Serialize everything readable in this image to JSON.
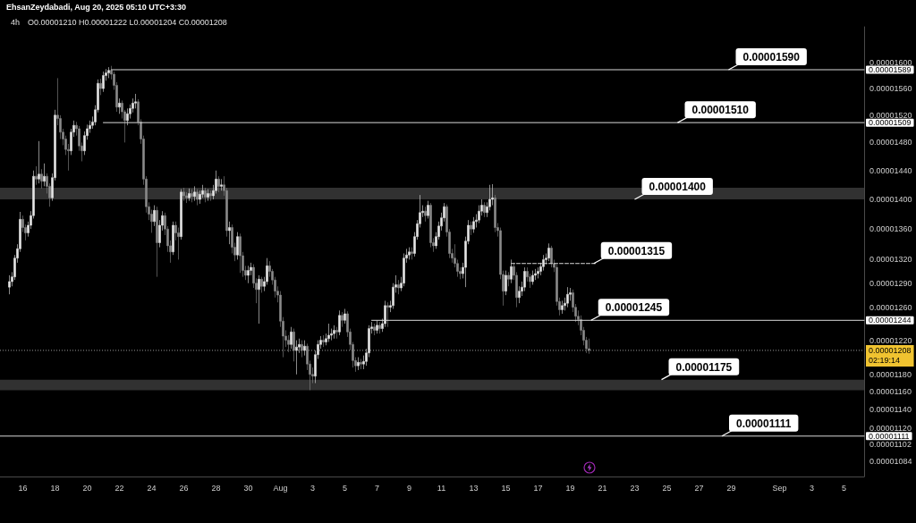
{
  "chart_data": {
    "type": "candlestick",
    "title": "4h",
    "subtitle": "O0.00001210 H0.00001222 L0.00001204 C0.00001208",
    "log": true,
    "x": [
      "2025-07-15T04:00",
      "2025-07-15T08:00",
      "2025-07-15T12:00",
      "2025-07-15T16:00",
      "2025-07-15T20:00",
      "2025-07-16T00:00",
      "2025-07-16T04:00",
      "2025-07-16T08:00",
      "2025-07-16T12:00",
      "2025-07-16T16:00",
      "2025-07-16T20:00",
      "2025-07-17T00:00",
      "2025-07-17T04:00",
      "2025-07-17T08:00",
      "2025-07-17T12:00",
      "2025-07-17T16:00",
      "2025-07-17T20:00",
      "2025-07-18T00:00",
      "2025-07-18T04:00",
      "2025-07-18T08:00",
      "2025-07-18T12:00",
      "2025-07-18T16:00",
      "2025-07-18T20:00",
      "2025-07-19T00:00",
      "2025-07-19T04:00",
      "2025-07-19T08:00",
      "2025-07-19T12:00",
      "2025-07-19T16:00",
      "2025-07-19T20:00",
      "2025-07-20T00:00",
      "2025-07-20T04:00",
      "2025-07-20T08:00",
      "2025-07-20T12:00",
      "2025-07-20T16:00",
      "2025-07-20T20:00",
      "2025-07-21T00:00",
      "2025-07-21T04:00",
      "2025-07-21T08:00",
      "2025-07-21T12:00",
      "2025-07-21T16:00",
      "2025-07-21T20:00",
      "2025-07-22T00:00",
      "2025-07-22T04:00",
      "2025-07-22T08:00",
      "2025-07-22T12:00",
      "2025-07-22T16:00",
      "2025-07-22T20:00",
      "2025-07-23T00:00",
      "2025-07-23T04:00",
      "2025-07-23T08:00",
      "2025-07-23T12:00",
      "2025-07-23T16:00",
      "2025-07-23T20:00",
      "2025-07-24T00:00",
      "2025-07-24T04:00",
      "2025-07-24T08:00",
      "2025-07-24T12:00",
      "2025-07-24T16:00",
      "2025-07-24T20:00",
      "2025-07-25T00:00",
      "2025-07-25T04:00",
      "2025-07-25T08:00",
      "2025-07-25T12:00",
      "2025-07-25T16:00",
      "2025-07-25T20:00",
      "2025-07-26T00:00",
      "2025-07-26T04:00",
      "2025-07-26T08:00",
      "2025-07-26T12:00",
      "2025-07-26T16:00",
      "2025-07-26T20:00",
      "2025-07-27T00:00",
      "2025-07-27T04:00",
      "2025-07-27T08:00",
      "2025-07-27T12:00",
      "2025-07-27T16:00",
      "2025-07-27T20:00",
      "2025-07-28T00:00",
      "2025-07-28T04:00",
      "2025-07-28T08:00",
      "2025-07-28T12:00",
      "2025-07-28T16:00",
      "2025-07-28T20:00",
      "2025-07-29T00:00",
      "2025-07-29T04:00",
      "2025-07-29T08:00",
      "2025-07-29T12:00",
      "2025-07-29T16:00",
      "2025-07-29T20:00",
      "2025-07-30T00:00",
      "2025-07-30T04:00",
      "2025-07-30T08:00",
      "2025-07-30T12:00",
      "2025-07-30T16:00",
      "2025-07-30T20:00",
      "2025-07-31T00:00",
      "2025-07-31T04:00",
      "2025-07-31T08:00",
      "2025-07-31T12:00",
      "2025-07-31T16:00",
      "2025-07-31T20:00",
      "2025-08-01T00:00",
      "2025-08-01T04:00",
      "2025-08-01T08:00",
      "2025-08-01T12:00",
      "2025-08-01T16:00",
      "2025-08-01T20:00",
      "2025-08-02T00:00",
      "2025-08-02T04:00",
      "2025-08-02T08:00",
      "2025-08-02T12:00",
      "2025-08-02T16:00",
      "2025-08-02T20:00",
      "2025-08-03T00:00",
      "2025-08-03T04:00",
      "2025-08-03T08:00",
      "2025-08-03T12:00",
      "2025-08-03T16:00",
      "2025-08-03T20:00",
      "2025-08-04T00:00",
      "2025-08-04T04:00",
      "2025-08-04T08:00",
      "2025-08-04T12:00",
      "2025-08-04T16:00",
      "2025-08-04T20:00",
      "2025-08-05T00:00",
      "2025-08-05T04:00",
      "2025-08-05T08:00",
      "2025-08-05T12:00",
      "2025-08-05T16:00",
      "2025-08-05T20:00",
      "2025-08-06T00:00",
      "2025-08-06T04:00",
      "2025-08-06T08:00",
      "2025-08-06T12:00",
      "2025-08-06T16:00",
      "2025-08-06T20:00",
      "2025-08-07T00:00",
      "2025-08-07T04:00",
      "2025-08-07T08:00",
      "2025-08-07T12:00",
      "2025-08-07T16:00",
      "2025-08-07T20:00",
      "2025-08-08T00:00",
      "2025-08-08T04:00",
      "2025-08-08T08:00",
      "2025-08-08T12:00",
      "2025-08-08T16:00",
      "2025-08-08T20:00",
      "2025-08-09T00:00",
      "2025-08-09T04:00",
      "2025-08-09T08:00",
      "2025-08-09T12:00",
      "2025-08-09T16:00",
      "2025-08-09T20:00",
      "2025-08-10T00:00",
      "2025-08-10T04:00",
      "2025-08-10T08:00",
      "2025-08-10T12:00",
      "2025-08-10T16:00",
      "2025-08-10T20:00",
      "2025-08-11T00:00",
      "2025-08-11T04:00",
      "2025-08-11T08:00",
      "2025-08-11T12:00",
      "2025-08-11T16:00",
      "2025-08-11T20:00",
      "2025-08-12T00:00",
      "2025-08-12T04:00",
      "2025-08-12T08:00",
      "2025-08-12T12:00",
      "2025-08-12T16:00",
      "2025-08-12T20:00",
      "2025-08-13T00:00",
      "2025-08-13T04:00",
      "2025-08-13T08:00",
      "2025-08-13T12:00",
      "2025-08-13T16:00",
      "2025-08-13T20:00",
      "2025-08-14T00:00",
      "2025-08-14T04:00",
      "2025-08-14T08:00",
      "2025-08-14T12:00",
      "2025-08-14T16:00",
      "2025-08-14T20:00",
      "2025-08-15T00:00",
      "2025-08-15T04:00",
      "2025-08-15T08:00",
      "2025-08-15T12:00",
      "2025-08-15T16:00",
      "2025-08-15T20:00",
      "2025-08-16T00:00",
      "2025-08-16T04:00",
      "2025-08-16T08:00",
      "2025-08-16T12:00",
      "2025-08-16T16:00",
      "2025-08-16T20:00",
      "2025-08-17T00:00",
      "2025-08-17T04:00",
      "2025-08-17T08:00",
      "2025-08-17T12:00",
      "2025-08-17T16:00",
      "2025-08-17T20:00",
      "2025-08-18T00:00",
      "2025-08-18T04:00",
      "2025-08-18T08:00",
      "2025-08-18T12:00",
      "2025-08-18T16:00",
      "2025-08-18T20:00",
      "2025-08-19T00:00",
      "2025-08-19T04:00",
      "2025-08-19T08:00",
      "2025-08-19T12:00",
      "2025-08-19T16:00",
      "2025-08-19T20:00",
      "2025-08-20T00:00",
      "2025-08-20T04:00"
    ],
    "colors": [
      "#e6e6e6",
      "#e6e6e6",
      "#e6e6e6",
      "#e6e6e6",
      "#e6e6e6",
      "#8a8a8a",
      "#8a8a8a",
      "#e6e6e6",
      "#e6e6e6",
      "#e6e6e6",
      "#8a8a8a",
      "#e6e6e6",
      "#8a8a8a",
      "#e6e6e6",
      "#8a8a8a",
      "#8a8a8a",
      "#e6e6e6",
      "#e6e6e6",
      "#8a8a8a",
      "#8a8a8a",
      "#8a8a8a",
      "#8a8a8a",
      "#8a8a8a",
      "#e6e6e6",
      "#e6e6e6",
      "#8a8a8a",
      "#8a8a8a",
      "#8a8a8a",
      "#e6e6e6",
      "#e6e6e6",
      "#e6e6e6",
      "#e6e6e6",
      "#e6e6e6",
      "#e6e6e6",
      "#8a8a8a",
      "#e6e6e6",
      "#e6e6e6",
      "#e6e6e6",
      "#8a8a8a",
      "#8a8a8a",
      "#8a8a8a",
      "#e6e6e6",
      "#8a8a8a",
      "#8a8a8a",
      "#e6e6e6",
      "#e6e6e6",
      "#e6e6e6",
      "#e6e6e6",
      "#8a8a8a",
      "#8a8a8a",
      "#8a8a8a",
      "#8a8a8a",
      "#8a8a8a",
      "#8a8a8a",
      "#e6e6e6",
      "#8a8a8a",
      "#e6e6e6",
      "#e6e6e6",
      "#8a8a8a",
      "#8a8a8a",
      "#8a8a8a",
      "#e6e6e6",
      "#8a8a8a",
      "#8a8a8a",
      "#e6e6e6",
      "#8a8a8a",
      "#8a8a8a",
      "#e6e6e6",
      "#8a8a8a",
      "#e6e6e6",
      "#8a8a8a",
      "#e6e6e6",
      "#e6e6e6",
      "#8a8a8a",
      "#e6e6e6",
      "#8a8a8a",
      "#e6e6e6",
      "#e6e6e6",
      "#8a8a8a",
      "#e6e6e6",
      "#8a8a8a",
      "#8a8a8a",
      "#e6e6e6",
      "#8a8a8a",
      "#8a8a8a",
      "#e6e6e6",
      "#8a8a8a",
      "#8a8a8a",
      "#8a8a8a",
      "#e6e6e6",
      "#e6e6e6",
      "#8a8a8a",
      "#8a8a8a",
      "#e6e6e6",
      "#8a8a8a",
      "#e6e6e6",
      "#e6e6e6",
      "#8a8a8a",
      "#8a8a8a",
      "#8a8a8a",
      "#8a8a8a",
      "#8a8a8a",
      "#8a8a8a",
      "#8a8a8a",
      "#8a8a8a",
      "#e6e6e6",
      "#8a8a8a",
      "#e6e6e6",
      "#e6e6e6",
      "#8a8a8a",
      "#e6e6e6",
      "#8a8a8a",
      "#8a8a8a",
      "#8a8a8a",
      "#e6e6e6",
      "#e6e6e6",
      "#e6e6e6",
      "#8a8a8a",
      "#e6e6e6",
      "#e6e6e6",
      "#e6e6e6",
      "#e6e6e6",
      "#8a8a8a",
      "#e6e6e6",
      "#8a8a8a",
      "#e6e6e6",
      "#8a8a8a",
      "#8a8a8a",
      "#8a8a8a",
      "#8a8a8a",
      "#e6e6e6",
      "#8a8a8a",
      "#e6e6e6",
      "#e6e6e6",
      "#e6e6e6",
      "#e6e6e6",
      "#8a8a8a",
      "#e6e6e6",
      "#8a8a8a",
      "#e6e6e6",
      "#e6e6e6",
      "#8a8a8a",
      "#e6e6e6",
      "#e6e6e6",
      "#e6e6e6",
      "#8a8a8a",
      "#e6e6e6",
      "#e6e6e6",
      "#e6e6e6",
      "#e6e6e6",
      "#8a8a8a",
      "#e6e6e6",
      "#e6e6e6",
      "#e6e6e6",
      "#e6e6e6",
      "#8a8a8a",
      "#e6e6e6",
      "#8a8a8a",
      "#8a8a8a",
      "#e6e6e6",
      "#e6e6e6",
      "#e6e6e6",
      "#e6e6e6",
      "#8a8a8a",
      "#8a8a8a",
      "#8a8a8a",
      "#8a8a8a",
      "#8a8a8a",
      "#8a8a8a",
      "#e6e6e6",
      "#e6e6e6",
      "#e6e6e6",
      "#8a8a8a",
      "#e6e6e6",
      "#e6e6e6",
      "#e6e6e6",
      "#e6e6e6",
      "#8a8a8a",
      "#e6e6e6",
      "#e6e6e6",
      "#e6e6e6",
      "#8a8a8a",
      "#8a8a8a",
      "#8a8a8a",
      "#8a8a8a",
      "#e6e6e6",
      "#8a8a8a",
      "#e6e6e6",
      "#8a8a8a",
      "#8a8a8a",
      "#e6e6e6",
      "#e6e6e6",
      "#e6e6e6",
      "#8a8a8a",
      "#8a8a8a",
      "#e6e6e6",
      "#e6e6e6",
      "#e6e6e6",
      "#e6e6e6",
      "#e6e6e6",
      "#e6e6e6",
      "#e6e6e6",
      "#8a8a8a",
      "#8a8a8a",
      "#8a8a8a",
      "#8a8a8a",
      "#e6e6e6",
      "#e6e6e6",
      "#e6e6e6",
      "#e6e6e6",
      "#8a8a8a",
      "#8a8a8a",
      "#8a8a8a",
      "#8a8a8a",
      "#8a8a8a",
      "#8a8a8a",
      "#8a8a8a"
    ],
    "ohlc": [
      [
        1.285e-05,
        1.3e-05,
        1.276e-05,
        1.292e-05
      ],
      [
        1.292e-05,
        1.304e-05,
        1.286e-05,
        1.298e-05
      ],
      [
        1.298e-05,
        1.326e-05,
        1.294e-05,
        1.322e-05
      ],
      [
        1.322e-05,
        1.34e-05,
        1.316e-05,
        1.334e-05
      ],
      [
        1.334e-05,
        1.383e-05,
        1.33e-05,
        1.373e-05
      ],
      [
        1.373e-05,
        1.378e-05,
        1.356e-05,
        1.362e-05
      ],
      [
        1.362e-05,
        1.366e-05,
        1.345e-05,
        1.355e-05
      ],
      [
        1.355e-05,
        1.37e-05,
        1.35e-05,
        1.365e-05
      ],
      [
        1.365e-05,
        1.384e-05,
        1.36e-05,
        1.378e-05
      ],
      [
        1.378e-05,
        1.44e-05,
        1.374e-05,
        1.432e-05
      ],
      [
        1.432e-05,
        1.446e-05,
        1.42e-05,
        1.428e-05
      ],
      [
        1.428e-05,
        1.482e-05,
        1.422e-05,
        1.435e-05
      ],
      [
        1.435e-05,
        1.442e-05,
        1.415e-05,
        1.425e-05
      ],
      [
        1.425e-05,
        1.45e-05,
        1.418e-05,
        1.432e-05
      ],
      [
        1.432e-05,
        1.436e-05,
        1.408e-05,
        1.418e-05
      ],
      [
        1.418e-05,
        1.422e-05,
        1.39e-05,
        1.402e-05
      ],
      [
        1.402e-05,
        1.436e-05,
        1.398e-05,
        1.43e-05
      ],
      [
        1.43e-05,
        1.528e-05,
        1.426e-05,
        1.52e-05
      ],
      [
        1.52e-05,
        1.576e-05,
        1.505e-05,
        1.515e-05
      ],
      [
        1.515e-05,
        1.52e-05,
        1.485e-05,
        1.495e-05
      ],
      [
        1.495e-05,
        1.5e-05,
        1.476e-05,
        1.485e-05
      ],
      [
        1.485e-05,
        1.49e-05,
        1.462e-05,
        1.47e-05
      ],
      [
        1.47e-05,
        1.478e-05,
        1.44e-05,
        1.468e-05
      ],
      [
        1.468e-05,
        1.5e-05,
        1.462e-05,
        1.495e-05
      ],
      [
        1.495e-05,
        1.512e-05,
        1.488e-05,
        1.505e-05
      ],
      [
        1.505e-05,
        1.51e-05,
        1.49e-05,
        1.5e-05
      ],
      [
        1.5e-05,
        1.504e-05,
        1.468e-05,
        1.475e-05
      ],
      [
        1.475e-05,
        1.48e-05,
        1.453e-05,
        1.468e-05
      ],
      [
        1.468e-05,
        1.496e-05,
        1.462e-05,
        1.49e-05
      ],
      [
        1.49e-05,
        1.506e-05,
        1.484e-05,
        1.5e-05
      ],
      [
        1.5e-05,
        1.512e-05,
        1.494e-05,
        1.505e-05
      ],
      [
        1.505e-05,
        1.518e-05,
        1.5e-05,
        1.51e-05
      ],
      [
        1.51e-05,
        1.535e-05,
        1.505e-05,
        1.528e-05
      ],
      [
        1.528e-05,
        1.574e-05,
        1.524e-05,
        1.568e-05
      ],
      [
        1.568e-05,
        1.575e-05,
        1.55e-05,
        1.56e-05
      ],
      [
        1.56e-05,
        1.586e-05,
        1.555e-05,
        1.58e-05
      ],
      [
        1.58e-05,
        1.59e-05,
        1.572e-05,
        1.584e-05
      ],
      [
        1.584e-05,
        1.593e-05,
        1.576e-05,
        1.588e-05
      ],
      [
        1.588e-05,
        1.595e-05,
        1.574e-05,
        1.582e-05
      ],
      [
        1.582e-05,
        1.586e-05,
        1.558e-05,
        1.565e-05
      ],
      [
        1.565e-05,
        1.57e-05,
        1.525e-05,
        1.532e-05
      ],
      [
        1.532e-05,
        1.545e-05,
        1.522e-05,
        1.538e-05
      ],
      [
        1.538e-05,
        1.542e-05,
        1.515e-05,
        1.525e-05
      ],
      [
        1.525e-05,
        1.528e-05,
        1.48e-05,
        1.512e-05
      ],
      [
        1.512e-05,
        1.53e-05,
        1.505e-05,
        1.522e-05
      ],
      [
        1.522e-05,
        1.536e-05,
        1.515e-05,
        1.53e-05
      ],
      [
        1.53e-05,
        1.545e-05,
        1.524e-05,
        1.538e-05
      ],
      [
        1.538e-05,
        1.552e-05,
        1.53e-05,
        1.54e-05
      ],
      [
        1.54e-05,
        1.544e-05,
        1.505e-05,
        1.51e-05
      ],
      [
        1.51e-05,
        1.514e-05,
        1.478e-05,
        1.485e-05
      ],
      [
        1.485e-05,
        1.49e-05,
        1.42e-05,
        1.428e-05
      ],
      [
        1.428e-05,
        1.432e-05,
        1.382e-05,
        1.39e-05
      ],
      [
        1.39e-05,
        1.396e-05,
        1.372e-05,
        1.38e-05
      ],
      [
        1.38e-05,
        1.386e-05,
        1.355e-05,
        1.37e-05
      ],
      [
        1.37e-05,
        1.392e-05,
        1.364e-05,
        1.385e-05
      ],
      [
        1.385e-05,
        1.39e-05,
        1.298e-05,
        1.342e-05
      ],
      [
        1.342e-05,
        1.372e-05,
        1.336e-05,
        1.365e-05
      ],
      [
        1.365e-05,
        1.384e-05,
        1.358e-05,
        1.378e-05
      ],
      [
        1.378e-05,
        1.382e-05,
        1.352e-05,
        1.36e-05
      ],
      [
        1.36e-05,
        1.364e-05,
        1.33e-05,
        1.338e-05
      ],
      [
        1.338e-05,
        1.345e-05,
        1.316e-05,
        1.33e-05
      ],
      [
        1.33e-05,
        1.37e-05,
        1.326e-05,
        1.365e-05
      ],
      [
        1.365e-05,
        1.37e-05,
        1.345e-05,
        1.355e-05
      ],
      [
        1.355e-05,
        1.362e-05,
        1.32e-05,
        1.35e-05
      ],
      [
        1.35e-05,
        1.414e-05,
        1.346e-05,
        1.41e-05
      ],
      [
        1.41e-05,
        1.416e-05,
        1.398e-05,
        1.405e-05
      ],
      [
        1.405e-05,
        1.41e-05,
        1.395e-05,
        1.402e-05
      ],
      [
        1.402e-05,
        1.415e-05,
        1.398e-05,
        1.408e-05
      ],
      [
        1.408e-05,
        1.414e-05,
        1.396e-05,
        1.404e-05
      ],
      [
        1.404e-05,
        1.418e-05,
        1.398e-05,
        1.41e-05
      ],
      [
        1.41e-05,
        1.414e-05,
        1.392e-05,
        1.4e-05
      ],
      [
        1.4e-05,
        1.412e-05,
        1.394e-05,
        1.407e-05
      ],
      [
        1.407e-05,
        1.42e-05,
        1.402e-05,
        1.412e-05
      ],
      [
        1.412e-05,
        1.416e-05,
        1.396e-05,
        1.403e-05
      ],
      [
        1.403e-05,
        1.414e-05,
        1.398e-05,
        1.408e-05
      ],
      [
        1.408e-05,
        1.412e-05,
        1.398e-05,
        1.405e-05
      ],
      [
        1.405e-05,
        1.42e-05,
        1.4e-05,
        1.412e-05
      ],
      [
        1.412e-05,
        1.44e-05,
        1.408e-05,
        1.428e-05
      ],
      [
        1.428e-05,
        1.432e-05,
        1.41e-05,
        1.418e-05
      ],
      [
        1.418e-05,
        1.428e-05,
        1.412e-05,
        1.42e-05
      ],
      [
        1.42e-05,
        1.432e-05,
        1.405e-05,
        1.412e-05
      ],
      [
        1.412e-05,
        1.416e-05,
        1.35e-05,
        1.358e-05
      ],
      [
        1.358e-05,
        1.37e-05,
        1.34e-05,
        1.362e-05
      ],
      [
        1.362e-05,
        1.366e-05,
        1.328e-05,
        1.336e-05
      ],
      [
        1.336e-05,
        1.342e-05,
        1.318e-05,
        1.326e-05
      ],
      [
        1.326e-05,
        1.356e-05,
        1.32e-05,
        1.35e-05
      ],
      [
        1.35e-05,
        1.354e-05,
        1.303e-05,
        1.325e-05
      ],
      [
        1.325e-05,
        1.33e-05,
        1.298e-05,
        1.306e-05
      ],
      [
        1.306e-05,
        1.312e-05,
        1.294e-05,
        1.3e-05
      ],
      [
        1.3e-05,
        1.312e-05,
        1.29e-05,
        1.306e-05
      ],
      [
        1.306e-05,
        1.316e-05,
        1.3e-05,
        1.31e-05
      ],
      [
        1.31e-05,
        1.314e-05,
        1.284e-05,
        1.29e-05
      ],
      [
        1.29e-05,
        1.296e-05,
        1.265e-05,
        1.282e-05
      ],
      [
        1.282e-05,
        1.3e-05,
        1.24e-05,
        1.295e-05
      ],
      [
        1.295e-05,
        1.298e-05,
        1.278e-05,
        1.286e-05
      ],
      [
        1.286e-05,
        1.298e-05,
        1.28e-05,
        1.292e-05
      ],
      [
        1.292e-05,
        1.322e-05,
        1.288e-05,
        1.312e-05
      ],
      [
        1.312e-05,
        1.318e-05,
        1.298e-05,
        1.305e-05
      ],
      [
        1.305e-05,
        1.308e-05,
        1.288e-05,
        1.294e-05
      ],
      [
        1.294e-05,
        1.298e-05,
        1.272e-05,
        1.28e-05
      ],
      [
        1.28e-05,
        1.286e-05,
        1.266e-05,
        1.275e-05
      ],
      [
        1.275e-05,
        1.28e-05,
        1.236e-05,
        1.243e-05
      ],
      [
        1.243e-05,
        1.248e-05,
        1.2e-05,
        1.225e-05
      ],
      [
        1.225e-05,
        1.232e-05,
        1.212e-05,
        1.22e-05
      ],
      [
        1.22e-05,
        1.226e-05,
        1.206e-05,
        1.215e-05
      ],
      [
        1.215e-05,
        1.236e-05,
        1.21e-05,
        1.23e-05
      ],
      [
        1.23e-05,
        1.234e-05,
        1.195e-05,
        1.208e-05
      ],
      [
        1.208e-05,
        1.22e-05,
        1.18e-05,
        1.212e-05
      ],
      [
        1.212e-05,
        1.222e-05,
        1.205e-05,
        1.215e-05
      ],
      [
        1.215e-05,
        1.22e-05,
        1.2e-05,
        1.208e-05
      ],
      [
        1.208e-05,
        1.22e-05,
        1.202e-05,
        1.213e-05
      ],
      [
        1.213e-05,
        1.216e-05,
        1.185e-05,
        1.192e-05
      ],
      [
        1.192e-05,
        1.196e-05,
        1.162e-05,
        1.18e-05
      ],
      [
        1.18e-05,
        1.188e-05,
        1.17e-05,
        1.178e-05
      ],
      [
        1.178e-05,
        1.208e-05,
        1.17e-05,
        1.203e-05
      ],
      [
        1.203e-05,
        1.22e-05,
        1.198e-05,
        1.215e-05
      ],
      [
        1.215e-05,
        1.225e-05,
        1.21e-05,
        1.22e-05
      ],
      [
        1.22e-05,
        1.226e-05,
        1.212e-05,
        1.218e-05
      ],
      [
        1.218e-05,
        1.228e-05,
        1.214e-05,
        1.222e-05
      ],
      [
        1.222e-05,
        1.24e-05,
        1.218e-05,
        1.226e-05
      ],
      [
        1.226e-05,
        1.234e-05,
        1.22e-05,
        1.228e-05
      ],
      [
        1.228e-05,
        1.238e-05,
        1.222e-05,
        1.232e-05
      ],
      [
        1.232e-05,
        1.236e-05,
        1.222e-05,
        1.23e-05
      ],
      [
        1.23e-05,
        1.256e-05,
        1.226e-05,
        1.25e-05
      ],
      [
        1.25e-05,
        1.254e-05,
        1.236e-05,
        1.244e-05
      ],
      [
        1.244e-05,
        1.258e-05,
        1.24e-05,
        1.252e-05
      ],
      [
        1.252e-05,
        1.255e-05,
        1.224e-05,
        1.23e-05
      ],
      [
        1.23e-05,
        1.234e-05,
        1.208e-05,
        1.215e-05
      ],
      [
        1.215e-05,
        1.218e-05,
        1.188e-05,
        1.196e-05
      ],
      [
        1.196e-05,
        1.2e-05,
        1.183e-05,
        1.19e-05
      ],
      [
        1.19e-05,
        1.2e-05,
        1.185e-05,
        1.194e-05
      ],
      [
        1.194e-05,
        1.198e-05,
        1.186e-05,
        1.192e-05
      ],
      [
        1.192e-05,
        1.202e-05,
        1.186e-05,
        1.195e-05
      ],
      [
        1.195e-05,
        1.21e-05,
        1.19e-05,
        1.205e-05
      ],
      [
        1.205e-05,
        1.238e-05,
        1.2e-05,
        1.234e-05
      ],
      [
        1.234e-05,
        1.242e-05,
        1.228e-05,
        1.236e-05
      ],
      [
        1.236e-05,
        1.24e-05,
        1.226e-05,
        1.232e-05
      ],
      [
        1.232e-05,
        1.244e-05,
        1.228e-05,
        1.238e-05
      ],
      [
        1.238e-05,
        1.242e-05,
        1.228e-05,
        1.234e-05
      ],
      [
        1.234e-05,
        1.246e-05,
        1.23e-05,
        1.24e-05
      ],
      [
        1.24e-05,
        1.268e-05,
        1.236e-05,
        1.262e-05
      ],
      [
        1.262e-05,
        1.266e-05,
        1.236e-05,
        1.26e-05
      ],
      [
        1.26e-05,
        1.268e-05,
        1.254e-05,
        1.262e-05
      ],
      [
        1.262e-05,
        1.29e-05,
        1.258e-05,
        1.285e-05
      ],
      [
        1.285e-05,
        1.3e-05,
        1.278e-05,
        1.288e-05
      ],
      [
        1.288e-05,
        1.294e-05,
        1.276e-05,
        1.284e-05
      ],
      [
        1.284e-05,
        1.298e-05,
        1.28e-05,
        1.29e-05
      ],
      [
        1.29e-05,
        1.328e-05,
        1.286e-05,
        1.322e-05
      ],
      [
        1.322e-05,
        1.334e-05,
        1.316e-05,
        1.326e-05
      ],
      [
        1.326e-05,
        1.336e-05,
        1.32e-05,
        1.33e-05
      ],
      [
        1.33e-05,
        1.336e-05,
        1.32e-05,
        1.328e-05
      ],
      [
        1.328e-05,
        1.356e-05,
        1.324e-05,
        1.35e-05
      ],
      [
        1.35e-05,
        1.372e-05,
        1.346e-05,
        1.367e-05
      ],
      [
        1.367e-05,
        1.406e-05,
        1.362e-05,
        1.382e-05
      ],
      [
        1.382e-05,
        1.392e-05,
        1.376e-05,
        1.384e-05
      ],
      [
        1.384e-05,
        1.39e-05,
        1.37e-05,
        1.378e-05
      ],
      [
        1.378e-05,
        1.398e-05,
        1.374e-05,
        1.392e-05
      ],
      [
        1.392e-05,
        1.395e-05,
        1.336e-05,
        1.342e-05
      ],
      [
        1.342e-05,
        1.348e-05,
        1.33e-05,
        1.338e-05
      ],
      [
        1.338e-05,
        1.356e-05,
        1.334e-05,
        1.35e-05
      ],
      [
        1.35e-05,
        1.37e-05,
        1.346e-05,
        1.364e-05
      ],
      [
        1.364e-05,
        1.382e-05,
        1.358e-05,
        1.375e-05
      ],
      [
        1.375e-05,
        1.395e-05,
        1.37e-05,
        1.39e-05
      ],
      [
        1.39e-05,
        1.393e-05,
        1.35e-05,
        1.356e-05
      ],
      [
        1.356e-05,
        1.36e-05,
        1.322e-05,
        1.328e-05
      ],
      [
        1.328e-05,
        1.334e-05,
        1.316e-05,
        1.322e-05
      ],
      [
        1.322e-05,
        1.34e-05,
        1.31e-05,
        1.315e-05
      ],
      [
        1.315e-05,
        1.32e-05,
        1.298e-05,
        1.305e-05
      ],
      [
        1.305e-05,
        1.31e-05,
        1.295e-05,
        1.302e-05
      ],
      [
        1.302e-05,
        1.316e-05,
        1.296e-05,
        1.31e-05
      ],
      [
        1.31e-05,
        1.35e-05,
        1.285e-05,
        1.344e-05
      ],
      [
        1.344e-05,
        1.372e-05,
        1.34e-05,
        1.365e-05
      ],
      [
        1.365e-05,
        1.37e-05,
        1.352e-05,
        1.36e-05
      ],
      [
        1.36e-05,
        1.376e-05,
        1.355e-05,
        1.37e-05
      ],
      [
        1.37e-05,
        1.38e-05,
        1.362e-05,
        1.372e-05
      ],
      [
        1.372e-05,
        1.392e-05,
        1.368e-05,
        1.384e-05
      ],
      [
        1.384e-05,
        1.4e-05,
        1.378e-05,
        1.392e-05
      ],
      [
        1.392e-05,
        1.396e-05,
        1.376e-05,
        1.382e-05
      ],
      [
        1.382e-05,
        1.396e-05,
        1.376e-05,
        1.39e-05
      ],
      [
        1.39e-05,
        1.42e-05,
        1.385e-05,
        1.4e-05
      ],
      [
        1.4e-05,
        1.421e-05,
        1.392e-05,
        1.402e-05
      ],
      [
        1.402e-05,
        1.406e-05,
        1.356e-05,
        1.362e-05
      ],
      [
        1.362e-05,
        1.368e-05,
        1.35e-05,
        1.358e-05
      ],
      [
        1.358e-05,
        1.362e-05,
        1.295e-05,
        1.301e-05
      ],
      [
        1.301e-05,
        1.306e-05,
        1.262e-05,
        1.28e-05
      ],
      [
        1.28e-05,
        1.306e-05,
        1.275e-05,
        1.3e-05
      ],
      [
        1.3e-05,
        1.304e-05,
        1.286e-05,
        1.295e-05
      ],
      [
        1.295e-05,
        1.32e-05,
        1.29e-05,
        1.311e-05
      ],
      [
        1.311e-05,
        1.316e-05,
        1.294e-05,
        1.3e-05
      ],
      [
        1.3e-05,
        1.304e-05,
        1.26e-05,
        1.272e-05
      ],
      [
        1.272e-05,
        1.286e-05,
        1.265e-05,
        1.28e-05
      ],
      [
        1.28e-05,
        1.292e-05,
        1.274e-05,
        1.285e-05
      ],
      [
        1.285e-05,
        1.31e-05,
        1.28e-05,
        1.305e-05
      ],
      [
        1.305e-05,
        1.31e-05,
        1.292e-05,
        1.298e-05
      ],
      [
        1.298e-05,
        1.302e-05,
        1.284e-05,
        1.292e-05
      ],
      [
        1.292e-05,
        1.306e-05,
        1.288e-05,
        1.3e-05
      ],
      [
        1.3e-05,
        1.308e-05,
        1.294e-05,
        1.302e-05
      ],
      [
        1.302e-05,
        1.31e-05,
        1.296e-05,
        1.305e-05
      ],
      [
        1.305e-05,
        1.316e-05,
        1.3e-05,
        1.311e-05
      ],
      [
        1.311e-05,
        1.326e-05,
        1.306e-05,
        1.32e-05
      ],
      [
        1.32e-05,
        1.328e-05,
        1.314e-05,
        1.322e-05
      ],
      [
        1.322e-05,
        1.341e-05,
        1.318e-05,
        1.335e-05
      ],
      [
        1.335e-05,
        1.338e-05,
        1.31e-05,
        1.315e-05
      ],
      [
        1.315e-05,
        1.32e-05,
        1.304e-05,
        1.31e-05
      ],
      [
        1.31e-05,
        1.314e-05,
        1.262e-05,
        1.267e-05
      ],
      [
        1.267e-05,
        1.272e-05,
        1.25e-05,
        1.257e-05
      ],
      [
        1.257e-05,
        1.268e-05,
        1.252e-05,
        1.262e-05
      ],
      [
        1.262e-05,
        1.272e-05,
        1.256e-05,
        1.265e-05
      ],
      [
        1.265e-05,
        1.285e-05,
        1.26e-05,
        1.276e-05
      ],
      [
        1.276e-05,
        1.284e-05,
        1.268e-05,
        1.278e-05
      ],
      [
        1.278e-05,
        1.282e-05,
        1.254e-05,
        1.26e-05
      ],
      [
        1.26e-05,
        1.264e-05,
        1.242e-05,
        1.249e-05
      ],
      [
        1.249e-05,
        1.256e-05,
        1.238e-05,
        1.245e-05
      ],
      [
        1.245e-05,
        1.25e-05,
        1.226e-05,
        1.232e-05
      ],
      [
        1.232e-05,
        1.236e-05,
        1.214e-05,
        1.22e-05
      ],
      [
        1.22e-05,
        1.224e-05,
        1.205e-05,
        1.21e-05
      ],
      [
        1.21e-05,
        1.222e-05,
        1.204e-05,
        1.208e-05
      ]
    ],
    "series": [
      {
        "type": "line",
        "x": [
          "2025-07-21T12:00",
          "2025-09-06T06:00"
        ],
        "values": [
          1.589e-05,
          1.589e-05
        ],
        "value_labels": [
          null,
          "0.00001589"
        ],
        "color": "#d9d9d9"
      },
      {
        "type": "line",
        "x": [
          "2025-07-21T00:00",
          "2025-09-06T06:00"
        ],
        "values": [
          1.509e-05,
          1.509e-05
        ],
        "value_labels": [
          null,
          "0.00001509"
        ],
        "color": "#d9d9d9"
      },
      {
        "type": "line",
        "x": [
          "2025-08-15T08:00",
          "2025-08-20T15:00"
        ],
        "values": [
          1.315e-05,
          1.315e-05
        ],
        "color": "#d9d9d9",
        "line_style": "dashed"
      },
      {
        "type": "line",
        "x": [
          "2025-08-06T16:00",
          "2025-09-06T06:00"
        ],
        "values": [
          1.244e-05,
          1.244e-05
        ],
        "value_labels": [
          null,
          "0.00001244"
        ],
        "color": "#d9d9d9"
      },
      {
        "type": "line",
        "x": [
          "2025-07-14T14:00",
          "2025-09-06T06:00"
        ],
        "values": [
          1.111e-05,
          1.111e-05
        ],
        "value_labels": [
          null,
          "0.00001111"
        ],
        "color": "#d9d9d9"
      }
    ],
    "bands": [
      {
        "axis": "y",
        "from": 1.4e-05,
        "to": 1.416e-05,
        "color": "#3d3d3d"
      },
      {
        "axis": "y",
        "from": 1.162e-05,
        "to": 1.174e-05,
        "color": "#3d3d3d"
      }
    ],
    "ref_lines": [
      {
        "axis": "y",
        "value": 1.208e-05,
        "label": "0.00001208\n02:19:14",
        "color": "#9a9a9a",
        "line_style": "dotted"
      }
    ],
    "annotations": [
      "EhsanZeydabadi, Aug 20, 2025 05:10 UTC+3:30",
      {
        "text": "0.00001590",
        "x": "2025-08-29T00:00",
        "y": 1.589e-05
      },
      {
        "text": "0.00001510",
        "x": "2025-08-25T20:00",
        "y": 1.509e-05
      },
      {
        "text": "0.00001400",
        "x": "2025-08-23T04:00",
        "y": 1.4e-05
      },
      {
        "text": "0.00001315",
        "x": "2025-08-20T15:00",
        "y": 1.315e-05
      },
      {
        "text": "0.00001245",
        "x": "2025-08-20T11:00",
        "y": 1.244e-05
      },
      {
        "text": "0.00001175",
        "x": "2025-08-24T20:00",
        "y": 1.174e-05
      },
      {
        "text": "0.00001111",
        "x": "2025-08-28T14:00",
        "y": 1.111e-05
      }
    ],
    "xlim": [
      "2025-07-14T14:00",
      "2025-09-06T06:00"
    ],
    "xticks": [
      {
        "value": "2025-07-16",
        "label": "16"
      },
      {
        "value": "2025-07-18",
        "label": "18"
      },
      {
        "value": "2025-07-20",
        "label": "20"
      },
      {
        "value": "2025-07-22",
        "label": "22"
      },
      {
        "value": "2025-07-24",
        "label": "24"
      },
      {
        "value": "2025-07-26",
        "label": "26"
      },
      {
        "value": "2025-07-28",
        "label": "28"
      },
      {
        "value": "2025-07-30",
        "label": "30"
      },
      {
        "value": "2025-08-01",
        "label": "Aug"
      },
      {
        "value": "2025-08-03",
        "label": "3"
      },
      {
        "value": "2025-08-05",
        "label": "5"
      },
      {
        "value": "2025-08-07",
        "label": "7"
      },
      {
        "value": "2025-08-09",
        "label": "9"
      },
      {
        "value": "2025-08-11",
        "label": "11"
      },
      {
        "value": "2025-08-13",
        "label": "13"
      },
      {
        "value": "2025-08-15",
        "label": "15"
      },
      {
        "value": "2025-08-17",
        "label": "17"
      },
      {
        "value": "2025-08-19",
        "label": "19"
      },
      {
        "value": "2025-08-21",
        "label": "21"
      },
      {
        "value": "2025-08-23",
        "label": "23"
      },
      {
        "value": "2025-08-25",
        "label": "25"
      },
      {
        "value": "2025-08-27",
        "label": "27"
      },
      {
        "value": "2025-08-29",
        "label": "29"
      },
      {
        "value": "2025-09-01",
        "label": "Sep"
      },
      {
        "value": "2025-09-03",
        "label": "3"
      },
      {
        "value": "2025-09-05",
        "label": "5"
      }
    ],
    "ylim": [
      1.068e-05,
      1.657e-05
    ],
    "yticks": [
      {
        "value": 1.6e-05,
        "label": "0.00001600"
      },
      {
        "value": 1.56e-05,
        "label": "0.00001560"
      },
      {
        "value": 1.52e-05,
        "label": "0.00001520"
      },
      {
        "value": 1.48e-05,
        "label": "0.00001480"
      },
      {
        "value": 1.44e-05,
        "label": "0.00001440"
      },
      {
        "value": 1.4e-05,
        "label": "0.00001400"
      },
      {
        "value": 1.36e-05,
        "label": "0.00001360"
      },
      {
        "value": 1.32e-05,
        "label": "0.00001320"
      },
      {
        "value": 1.29e-05,
        "label": "0.00001290"
      },
      {
        "value": 1.26e-05,
        "label": "0.00001260"
      },
      {
        "value": 1.22e-05,
        "label": "0.00001220"
      },
      {
        "value": 1.18e-05,
        "label": "0.00001180"
      },
      {
        "value": 1.16e-05,
        "label": "0.00001160"
      },
      {
        "value": 1.14e-05,
        "label": "0.00001140"
      },
      {
        "value": 1.12e-05,
        "label": "0.00001120"
      },
      {
        "value": 1.102e-05,
        "label": "0.00001102"
      },
      {
        "value": 1.084e-05,
        "label": "0.00001084"
      }
    ]
  }
}
